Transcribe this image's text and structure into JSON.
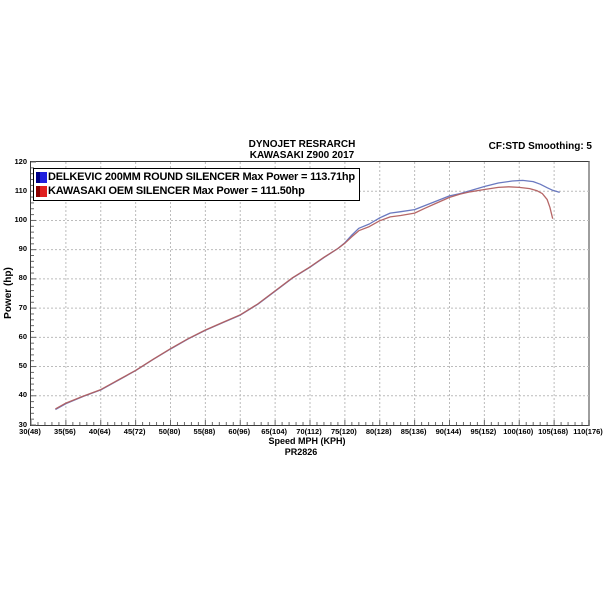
{
  "header": {
    "title_line1": "DYNOJET RESRARCH",
    "title_line2": "KAWASAKI Z900 2017",
    "smoothing": "CF:STD Smoothing: 5"
  },
  "footer": {
    "xlabel": "Speed MPH (KPH)",
    "run_id": "PR2826"
  },
  "y_axis_title": "Power (hp)",
  "legend": [
    {
      "label": "DELKEVIC 200MM ROUND SILENCER Max Power = 113.71hp",
      "swatch_color": "#2020dd",
      "swatch_dark": "#000088"
    },
    {
      "label": "KAWASAKI OEM SILENCER Max Power = 111.50hp",
      "swatch_color": "#e02020",
      "swatch_dark": "#8b0000"
    }
  ],
  "colors": {
    "delkevic_curve": "#6272bd",
    "oem_curve": "#b25f5f",
    "gridline": "#bcbcbc",
    "minor_tick": "#6a6a6a",
    "text": "#000000"
  },
  "chart_data": {
    "type": "line",
    "title": "DYNOJET RESRARCH — KAWASAKI Z900 2017",
    "xlabel": "Speed MPH (KPH)",
    "ylabel": "Power (hp)",
    "xlim": [
      30,
      110
    ],
    "ylim": [
      30,
      120
    ],
    "grid": true,
    "legend_position": "top-left",
    "x_ticks": [
      {
        "v": 30,
        "label": "30(48)"
      },
      {
        "v": 35,
        "label": "35(56)"
      },
      {
        "v": 40,
        "label": "40(64)"
      },
      {
        "v": 45,
        "label": "45(72)"
      },
      {
        "v": 50,
        "label": "50(80)"
      },
      {
        "v": 55,
        "label": "55(88)"
      },
      {
        "v": 60,
        "label": "60(96)"
      },
      {
        "v": 65,
        "label": "65(104)"
      },
      {
        "v": 70,
        "label": "70(112)"
      },
      {
        "v": 75,
        "label": "75(120)"
      },
      {
        "v": 80,
        "label": "80(128)"
      },
      {
        "v": 85,
        "label": "85(136)"
      },
      {
        "v": 90,
        "label": "90(144)"
      },
      {
        "v": 95,
        "label": "95(152)"
      },
      {
        "v": 100,
        "label": "100(160)"
      },
      {
        "v": 105,
        "label": "105(168)"
      },
      {
        "v": 110,
        "label": "110(176)"
      }
    ],
    "y_ticks": [
      120,
      110,
      100,
      90,
      80,
      70,
      60,
      50,
      40,
      30
    ],
    "minor_tick_step_x": 1,
    "minor_tick_step_y": 2,
    "series": [
      {
        "name": "DELKEVIC 200MM ROUND SILENCER",
        "max_power_hp": 113.71,
        "color_key": "delkevic_curve",
        "points": [
          [
            33.5,
            35.3
          ],
          [
            35,
            37.3
          ],
          [
            37.5,
            39.8
          ],
          [
            40,
            42.0
          ],
          [
            42.5,
            45.3
          ],
          [
            45,
            48.6
          ],
          [
            47.5,
            52.4
          ],
          [
            50,
            56.0
          ],
          [
            52.5,
            59.4
          ],
          [
            55,
            62.4
          ],
          [
            57.5,
            65.0
          ],
          [
            60,
            67.6
          ],
          [
            62.5,
            71.3
          ],
          [
            65,
            75.8
          ],
          [
            67.5,
            80.3
          ],
          [
            70,
            84.0
          ],
          [
            72,
            87.3
          ],
          [
            74,
            90.4
          ],
          [
            75,
            92.4
          ],
          [
            76,
            95.0
          ],
          [
            77,
            97.3
          ],
          [
            78.5,
            98.8
          ],
          [
            80,
            100.9
          ],
          [
            81.5,
            102.5
          ],
          [
            83,
            103.0
          ],
          [
            85,
            103.7
          ],
          [
            86.5,
            105.1
          ],
          [
            88,
            106.5
          ],
          [
            90,
            108.4
          ],
          [
            91.5,
            109.2
          ],
          [
            93,
            110.2
          ],
          [
            95,
            111.6
          ],
          [
            97,
            112.8
          ],
          [
            99,
            113.5
          ],
          [
            100.5,
            113.71
          ],
          [
            102,
            113.3
          ],
          [
            103,
            112.4
          ],
          [
            104,
            111.2
          ],
          [
            104.8,
            110.3
          ],
          [
            105.8,
            109.6
          ]
        ]
      },
      {
        "name": "KAWASAKI OEM SILENCER",
        "max_power_hp": 111.5,
        "color_key": "oem_curve",
        "points": [
          [
            33.5,
            35.5
          ],
          [
            35,
            37.5
          ],
          [
            37.5,
            39.9
          ],
          [
            40,
            42.1
          ],
          [
            42.5,
            45.4
          ],
          [
            45,
            48.7
          ],
          [
            47.5,
            52.5
          ],
          [
            50,
            56.1
          ],
          [
            52.5,
            59.5
          ],
          [
            55,
            62.5
          ],
          [
            57.5,
            65.1
          ],
          [
            60,
            67.7
          ],
          [
            62.5,
            71.4
          ],
          [
            65,
            75.9
          ],
          [
            67.5,
            80.4
          ],
          [
            70,
            84.1
          ],
          [
            72,
            87.4
          ],
          [
            74,
            90.4
          ],
          [
            75,
            92.2
          ],
          [
            76,
            94.4
          ],
          [
            77,
            96.5
          ],
          [
            78.5,
            97.9
          ],
          [
            80,
            99.9
          ],
          [
            81.5,
            101.2
          ],
          [
            83,
            101.7
          ],
          [
            85,
            102.5
          ],
          [
            86.5,
            104.2
          ],
          [
            88,
            105.8
          ],
          [
            90,
            107.9
          ],
          [
            91.5,
            109.0
          ],
          [
            93,
            109.8
          ],
          [
            95,
            110.6
          ],
          [
            97,
            111.3
          ],
          [
            98.5,
            111.5
          ],
          [
            100,
            111.3
          ],
          [
            101.5,
            110.9
          ],
          [
            102.5,
            110.2
          ],
          [
            103.3,
            109.2
          ],
          [
            104,
            107.2
          ],
          [
            104.4,
            104.5
          ],
          [
            104.8,
            100.6
          ]
        ]
      }
    ]
  }
}
